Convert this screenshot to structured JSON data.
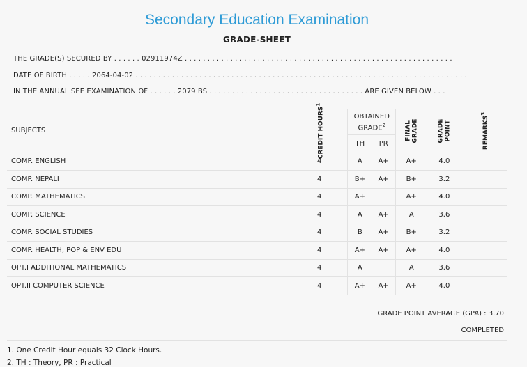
{
  "title": "Secondary Education Examination",
  "subtitle": "GRADE-SHEET",
  "info": {
    "grades_prefix": "THE GRADE(S) SECURED BY . . . . . .",
    "symbol_no": "02911974Z",
    "grades_suffix": ". . . . . . . . . . . . . . . . . . . . . . . . . . . . . . . . . . . . . . . . . . . . . . . . . . . . . . . . . . .",
    "dob_prefix": "DATE OF BIRTH . . . . .",
    "dob": "2064-04-02",
    "dob_suffix": ". . . . . . . . . . . . . . . . . . . . . . . . . . . . . . . . . . . . . . . . . . . . . . . . . . . . . . . . . . . . . . . . . . . . . . . . .",
    "exam_prefix": "IN THE ANNUAL SEE EXAMINATION OF . . . . . .",
    "exam_year": "2079 BS",
    "exam_suffix": ". . . . . . . . . . . . . . . . . . . . . . . . . . . . . . . . . . ARE GIVEN BELOW . . ."
  },
  "table": {
    "headers": {
      "subjects": "SUBJECTS",
      "credit_hours": "CREDIT HOURS",
      "credit_sup": "1",
      "obtained": "OBTAINED",
      "grade": "GRADE",
      "grade_sup": "2",
      "th": "TH",
      "pr": "PR",
      "final": "FINAL",
      "final_grade": "GRADE",
      "grade_pt": "GRADE",
      "point": "POINT",
      "remarks": "REMARKS",
      "remarks_sup": "3"
    },
    "rows": [
      {
        "subject": "COMP. ENGLISH",
        "ch": "4",
        "th": "A",
        "pr": "A+",
        "fg": "A+",
        "gp": "4.0",
        "rm": ""
      },
      {
        "subject": "COMP. NEPALI",
        "ch": "4",
        "th": "B+",
        "pr": "A+",
        "fg": "B+",
        "gp": "3.2",
        "rm": ""
      },
      {
        "subject": "COMP. MATHEMATICS",
        "ch": "4",
        "th": "A+",
        "pr": "",
        "fg": "A+",
        "gp": "4.0",
        "rm": ""
      },
      {
        "subject": "COMP. SCIENCE",
        "ch": "4",
        "th": "A",
        "pr": "A+",
        "fg": "A",
        "gp": "3.6",
        "rm": ""
      },
      {
        "subject": "COMP. SOCIAL STUDIES",
        "ch": "4",
        "th": "B",
        "pr": "A+",
        "fg": "B+",
        "gp": "3.2",
        "rm": ""
      },
      {
        "subject": "COMP. HEALTH, POP & ENV EDU",
        "ch": "4",
        "th": "A+",
        "pr": "A+",
        "fg": "A+",
        "gp": "4.0",
        "rm": ""
      },
      {
        "subject": "OPT.I ADDITIONAL MATHEMATICS",
        "ch": "4",
        "th": "A",
        "pr": "",
        "fg": "A",
        "gp": "3.6",
        "rm": ""
      },
      {
        "subject": "OPT.II COMPUTER SCIENCE",
        "ch": "4",
        "th": "A+",
        "pr": "A+",
        "fg": "A+",
        "gp": "4.0",
        "rm": ""
      }
    ]
  },
  "gpa": "GRADE POINT AVERAGE (GPA) : 3.70",
  "status": "COMPLETED",
  "footnotes": [
    "1. One Credit Hour equals 32 Clock Hours.",
    "2. TH : Theory, PR : Practical"
  ]
}
